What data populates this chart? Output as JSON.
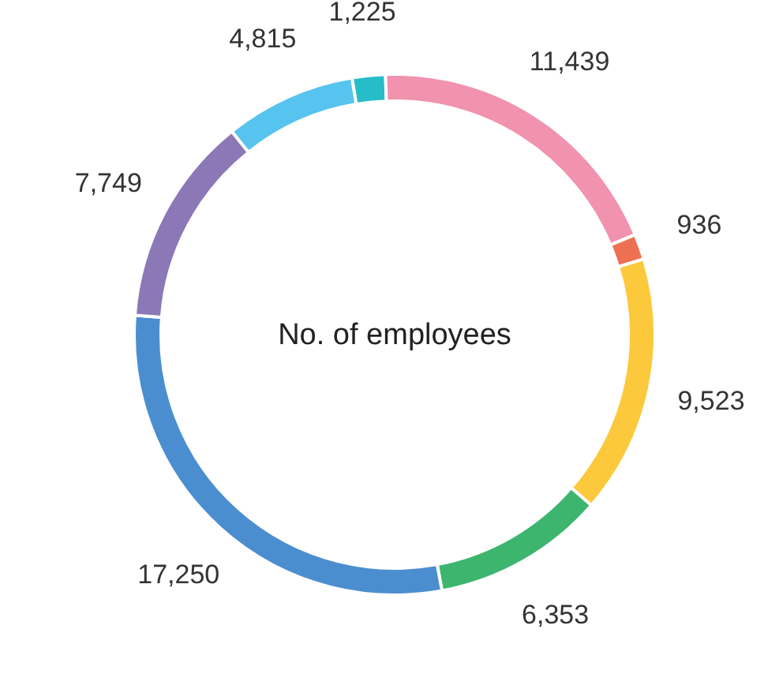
{
  "chart_data": {
    "type": "donut",
    "title": "No. of employees",
    "categories": [
      null,
      null,
      null,
      null,
      null,
      null,
      null,
      null
    ],
    "values": [
      1225,
      11439,
      936,
      9523,
      6353,
      17250,
      7749,
      4815
    ],
    "value_labels": [
      "1,225",
      "11,439",
      "936",
      "9,523",
      "6,353",
      "17,250",
      "7,749",
      "4,815"
    ],
    "colors": [
      "#26bdc8",
      "#f192ae",
      "#ee7052",
      "#fcc93d",
      "#3db56f",
      "#4b8ed0",
      "#8c77b7",
      "#57c3ef"
    ]
  }
}
